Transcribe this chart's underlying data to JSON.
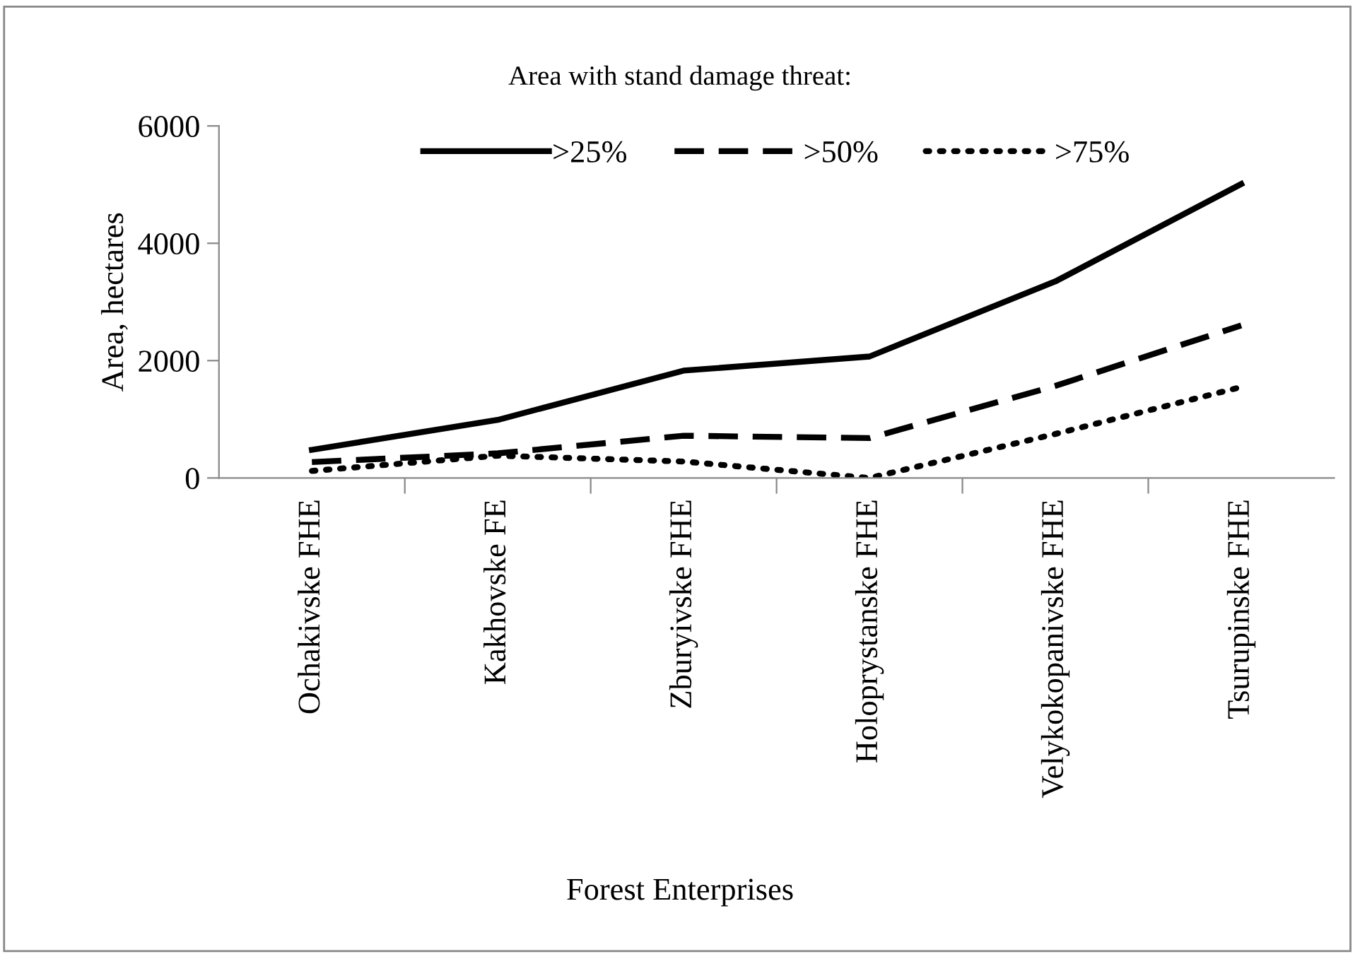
{
  "chart_data": {
    "type": "line",
    "title": "Area with stand damage threat:",
    "xlabel": "Forest Enterprises",
    "ylabel": "Area, hectares",
    "categories": [
      "Ochakivske FHE",
      "Kakhovske FE",
      "Zburyivske FHE",
      "Holoprystanske FHE",
      "Velykokopanivske FHE",
      "Tsurupinske FHE"
    ],
    "series": [
      {
        "name": ">25%",
        "color": "#000000",
        "line_style": "solid",
        "values": [
          480,
          990,
          1830,
          2070,
          3350,
          5010
        ]
      },
      {
        "name": ">50%",
        "color": "#000000",
        "line_style": "dashed",
        "values": [
          270,
          420,
          720,
          680,
          1570,
          2600
        ]
      },
      {
        "name": ">75%",
        "color": "#000000",
        "line_style": "dotted",
        "values": [
          120,
          380,
          280,
          0,
          750,
          1550
        ]
      }
    ],
    "ylim": [
      0,
      6000
    ],
    "yticks": [
      0,
      2000,
      4000,
      6000
    ],
    "grid": false,
    "legend": "top right",
    "marker": "none"
  }
}
